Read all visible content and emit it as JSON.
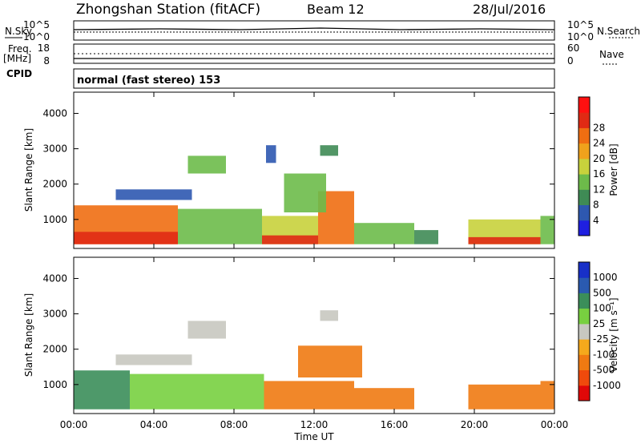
{
  "header": {
    "station": "Zhongshan Station (fitACF)",
    "beam": "Beam 12",
    "date": "28/Jul/2016"
  },
  "top_panel": {
    "left_label": "N.Sky",
    "right_label": "N.Search",
    "left_ticks": [
      "10^5",
      "10^0"
    ],
    "right_ticks": [
      "10^5",
      "10^0"
    ]
  },
  "freq_panel": {
    "left_label": "Freq.",
    "left_unit": "[MHz]",
    "right_label": "Nave",
    "left_ticks": [
      "18",
      "8"
    ],
    "right_ticks": [
      "60",
      "0"
    ]
  },
  "cpid": {
    "label": "CPID",
    "text": "normal (fast stereo) 153"
  },
  "colors": {
    "power_scale": [
      "#1f1fe0",
      "#2e58b0",
      "#3f8b55",
      "#6dbb4a",
      "#c8d23c",
      "#f0a21c",
      "#f06e12",
      "#e02a14",
      "#ff1010"
    ],
    "velocity_scale": [
      "#e00808",
      "#f04a0c",
      "#f07a12",
      "#f5a91c",
      "#c8c8c0",
      "#78d040",
      "#3b8e5a",
      "#2a5ab0",
      "#1830c8"
    ]
  },
  "chart_data": [
    {
      "type": "heatmap",
      "title": "Power",
      "ylabel": "Slant Range [km]",
      "ylim": [
        180,
        4600
      ],
      "yticks": [
        "1000",
        "2000",
        "3000",
        "4000"
      ],
      "xlim": [
        "00:00",
        "24:00"
      ],
      "colorbar": {
        "label": "Power [dB]",
        "range": [
          0,
          32
        ],
        "ticks": [
          "4",
          "8",
          "12",
          "16",
          "20",
          "24",
          "28"
        ]
      },
      "regions": [
        {
          "t0": 0.0,
          "t1": 5.2,
          "r0": 300,
          "r1": 1400,
          "v": 22
        },
        {
          "t0": 0.0,
          "t1": 5.2,
          "r0": 300,
          "r1": 650,
          "v": 27
        },
        {
          "t0": 5.2,
          "t1": 9.4,
          "r0": 300,
          "r1": 1300,
          "v": 12
        },
        {
          "t0": 9.4,
          "t1": 12.2,
          "r0": 300,
          "r1": 1100,
          "v": 16
        },
        {
          "t0": 9.4,
          "t1": 12.2,
          "r0": 300,
          "r1": 550,
          "v": 27
        },
        {
          "t0": 12.2,
          "t1": 14.0,
          "r0": 300,
          "r1": 1800,
          "v": 24
        },
        {
          "t0": 14.0,
          "t1": 17.0,
          "r0": 300,
          "r1": 900,
          "v": 14
        },
        {
          "t0": 17.0,
          "t1": 18.2,
          "r0": 300,
          "r1": 700,
          "v": 10
        },
        {
          "t0": 19.7,
          "t1": 23.3,
          "r0": 300,
          "r1": 1000,
          "v": 16
        },
        {
          "t0": 19.7,
          "t1": 23.3,
          "r0": 300,
          "r1": 500,
          "v": 27
        },
        {
          "t0": 23.3,
          "t1": 24.0,
          "r0": 300,
          "r1": 1100,
          "v": 12
        },
        {
          "t0": 2.1,
          "t1": 5.9,
          "r0": 1550,
          "r1": 1850,
          "v": 6
        },
        {
          "t0": 5.7,
          "t1": 7.6,
          "r0": 2300,
          "r1": 2800,
          "v": 12
        },
        {
          "t0": 9.6,
          "t1": 10.1,
          "r0": 2600,
          "r1": 3100,
          "v": 6
        },
        {
          "t0": 12.3,
          "t1": 13.2,
          "r0": 2800,
          "r1": 3100,
          "v": 8
        },
        {
          "t0": 10.5,
          "t1": 12.6,
          "r0": 1200,
          "r1": 2300,
          "v": 14
        }
      ]
    },
    {
      "type": "heatmap",
      "title": "Velocity",
      "ylabel": "Slant Range [km]",
      "ylim": [
        180,
        4600
      ],
      "yticks": [
        "1000",
        "2000",
        "3000",
        "4000"
      ],
      "xlim": [
        "00:00",
        "24:00"
      ],
      "xticks": [
        "00:00",
        "04:00",
        "08:00",
        "12:00",
        "16:00",
        "20:00",
        "00:00"
      ],
      "xlabel": "Time UT",
      "colorbar": {
        "label": "Velocity [m s⁻¹]",
        "ticks": [
          "1000",
          "500",
          "100",
          "25",
          "-25",
          "-100",
          "-500",
          "-1000"
        ]
      },
      "regions": [
        {
          "t0": 0.0,
          "t1": 2.8,
          "r0": 300,
          "r1": 1400,
          "v": 200
        },
        {
          "t0": 2.8,
          "t1": 9.5,
          "r0": 300,
          "r1": 1300,
          "v": 60
        },
        {
          "t0": 9.5,
          "t1": 14.0,
          "r0": 300,
          "r1": 1100,
          "v": -150
        },
        {
          "t0": 11.2,
          "t1": 14.4,
          "r0": 1200,
          "r1": 2100,
          "v": -150
        },
        {
          "t0": 14.0,
          "t1": 17.0,
          "r0": 300,
          "r1": 900,
          "v": -150
        },
        {
          "t0": 19.7,
          "t1": 23.3,
          "r0": 300,
          "r1": 1000,
          "v": -150
        },
        {
          "t0": 23.3,
          "t1": 24.0,
          "r0": 300,
          "r1": 1100,
          "v": -300
        },
        {
          "t0": 2.1,
          "t1": 5.9,
          "r0": 1550,
          "r1": 1850,
          "v": 0
        },
        {
          "t0": 5.7,
          "t1": 7.6,
          "r0": 2300,
          "r1": 2800,
          "v": 20
        },
        {
          "t0": 12.3,
          "t1": 13.2,
          "r0": 2800,
          "r1": 3100,
          "v": 0
        }
      ]
    }
  ]
}
